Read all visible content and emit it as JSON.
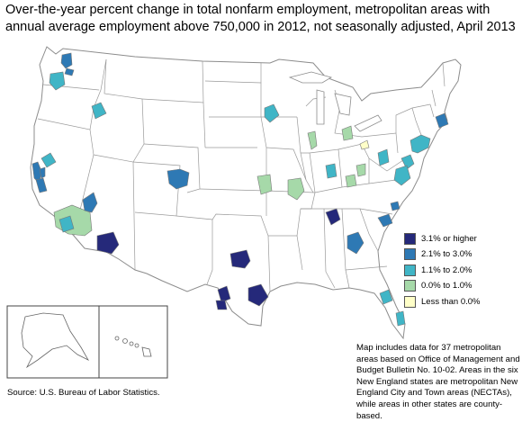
{
  "title": "Over-the-year percent change in total nonfarm employment, metropolitan areas with annual average employment above 750,000 in 2012, not seasonally adjusted, April 2013",
  "legend": [
    {
      "label": "3.1% or higher",
      "color": "#25297a"
    },
    {
      "label": "2.1% to 3.0%",
      "color": "#2e79b4"
    },
    {
      "label": "1.1% to 2.0%",
      "color": "#40b5c6"
    },
    {
      "label": "0.0% to 1.0%",
      "color": "#a6d9a9"
    },
    {
      "label": "Less than 0.0%",
      "color": "#ffffc8"
    }
  ],
  "note": "Map includes data for 37 metropolitan areas based on Office of Management and Budget Bulletin No. 10-02. Areas in the six New England states are metropolitan New England City and Town areas (NECTAs), while areas in other states are county-based.",
  "source": "Source:  U.S. Bureau of Labor Statistics.",
  "colors": {
    "state_border": "#8c8c8c",
    "background": "#ffffff"
  },
  "metro_areas": [
    {
      "category": 2
    },
    {
      "category": 2
    },
    {
      "category": 3
    },
    {
      "category": 2
    },
    {
      "category": 3
    },
    {
      "category": 2
    },
    {
      "category": 2
    },
    {
      "category": 4
    },
    {
      "category": 3
    },
    {
      "category": 2
    },
    {
      "category": 1
    },
    {
      "category": 3
    },
    {
      "category": 2
    },
    {
      "category": 4
    },
    {
      "category": 4
    },
    {
      "category": 3
    },
    {
      "category": 4
    },
    {
      "category": 3
    },
    {
      "category": 4
    },
    {
      "category": 4
    },
    {
      "category": 5
    },
    {
      "category": 4
    },
    {
      "category": 3
    },
    {
      "category": 3
    },
    {
      "category": 3
    },
    {
      "category": 3
    },
    {
      "category": 2
    },
    {
      "category": 2
    },
    {
      "category": 1
    },
    {
      "category": 2
    },
    {
      "category": 2
    },
    {
      "category": 1
    },
    {
      "category": 1
    },
    {
      "category": 1
    },
    {
      "category": 1
    },
    {
      "category": 3
    },
    {
      "category": 3
    }
  ]
}
